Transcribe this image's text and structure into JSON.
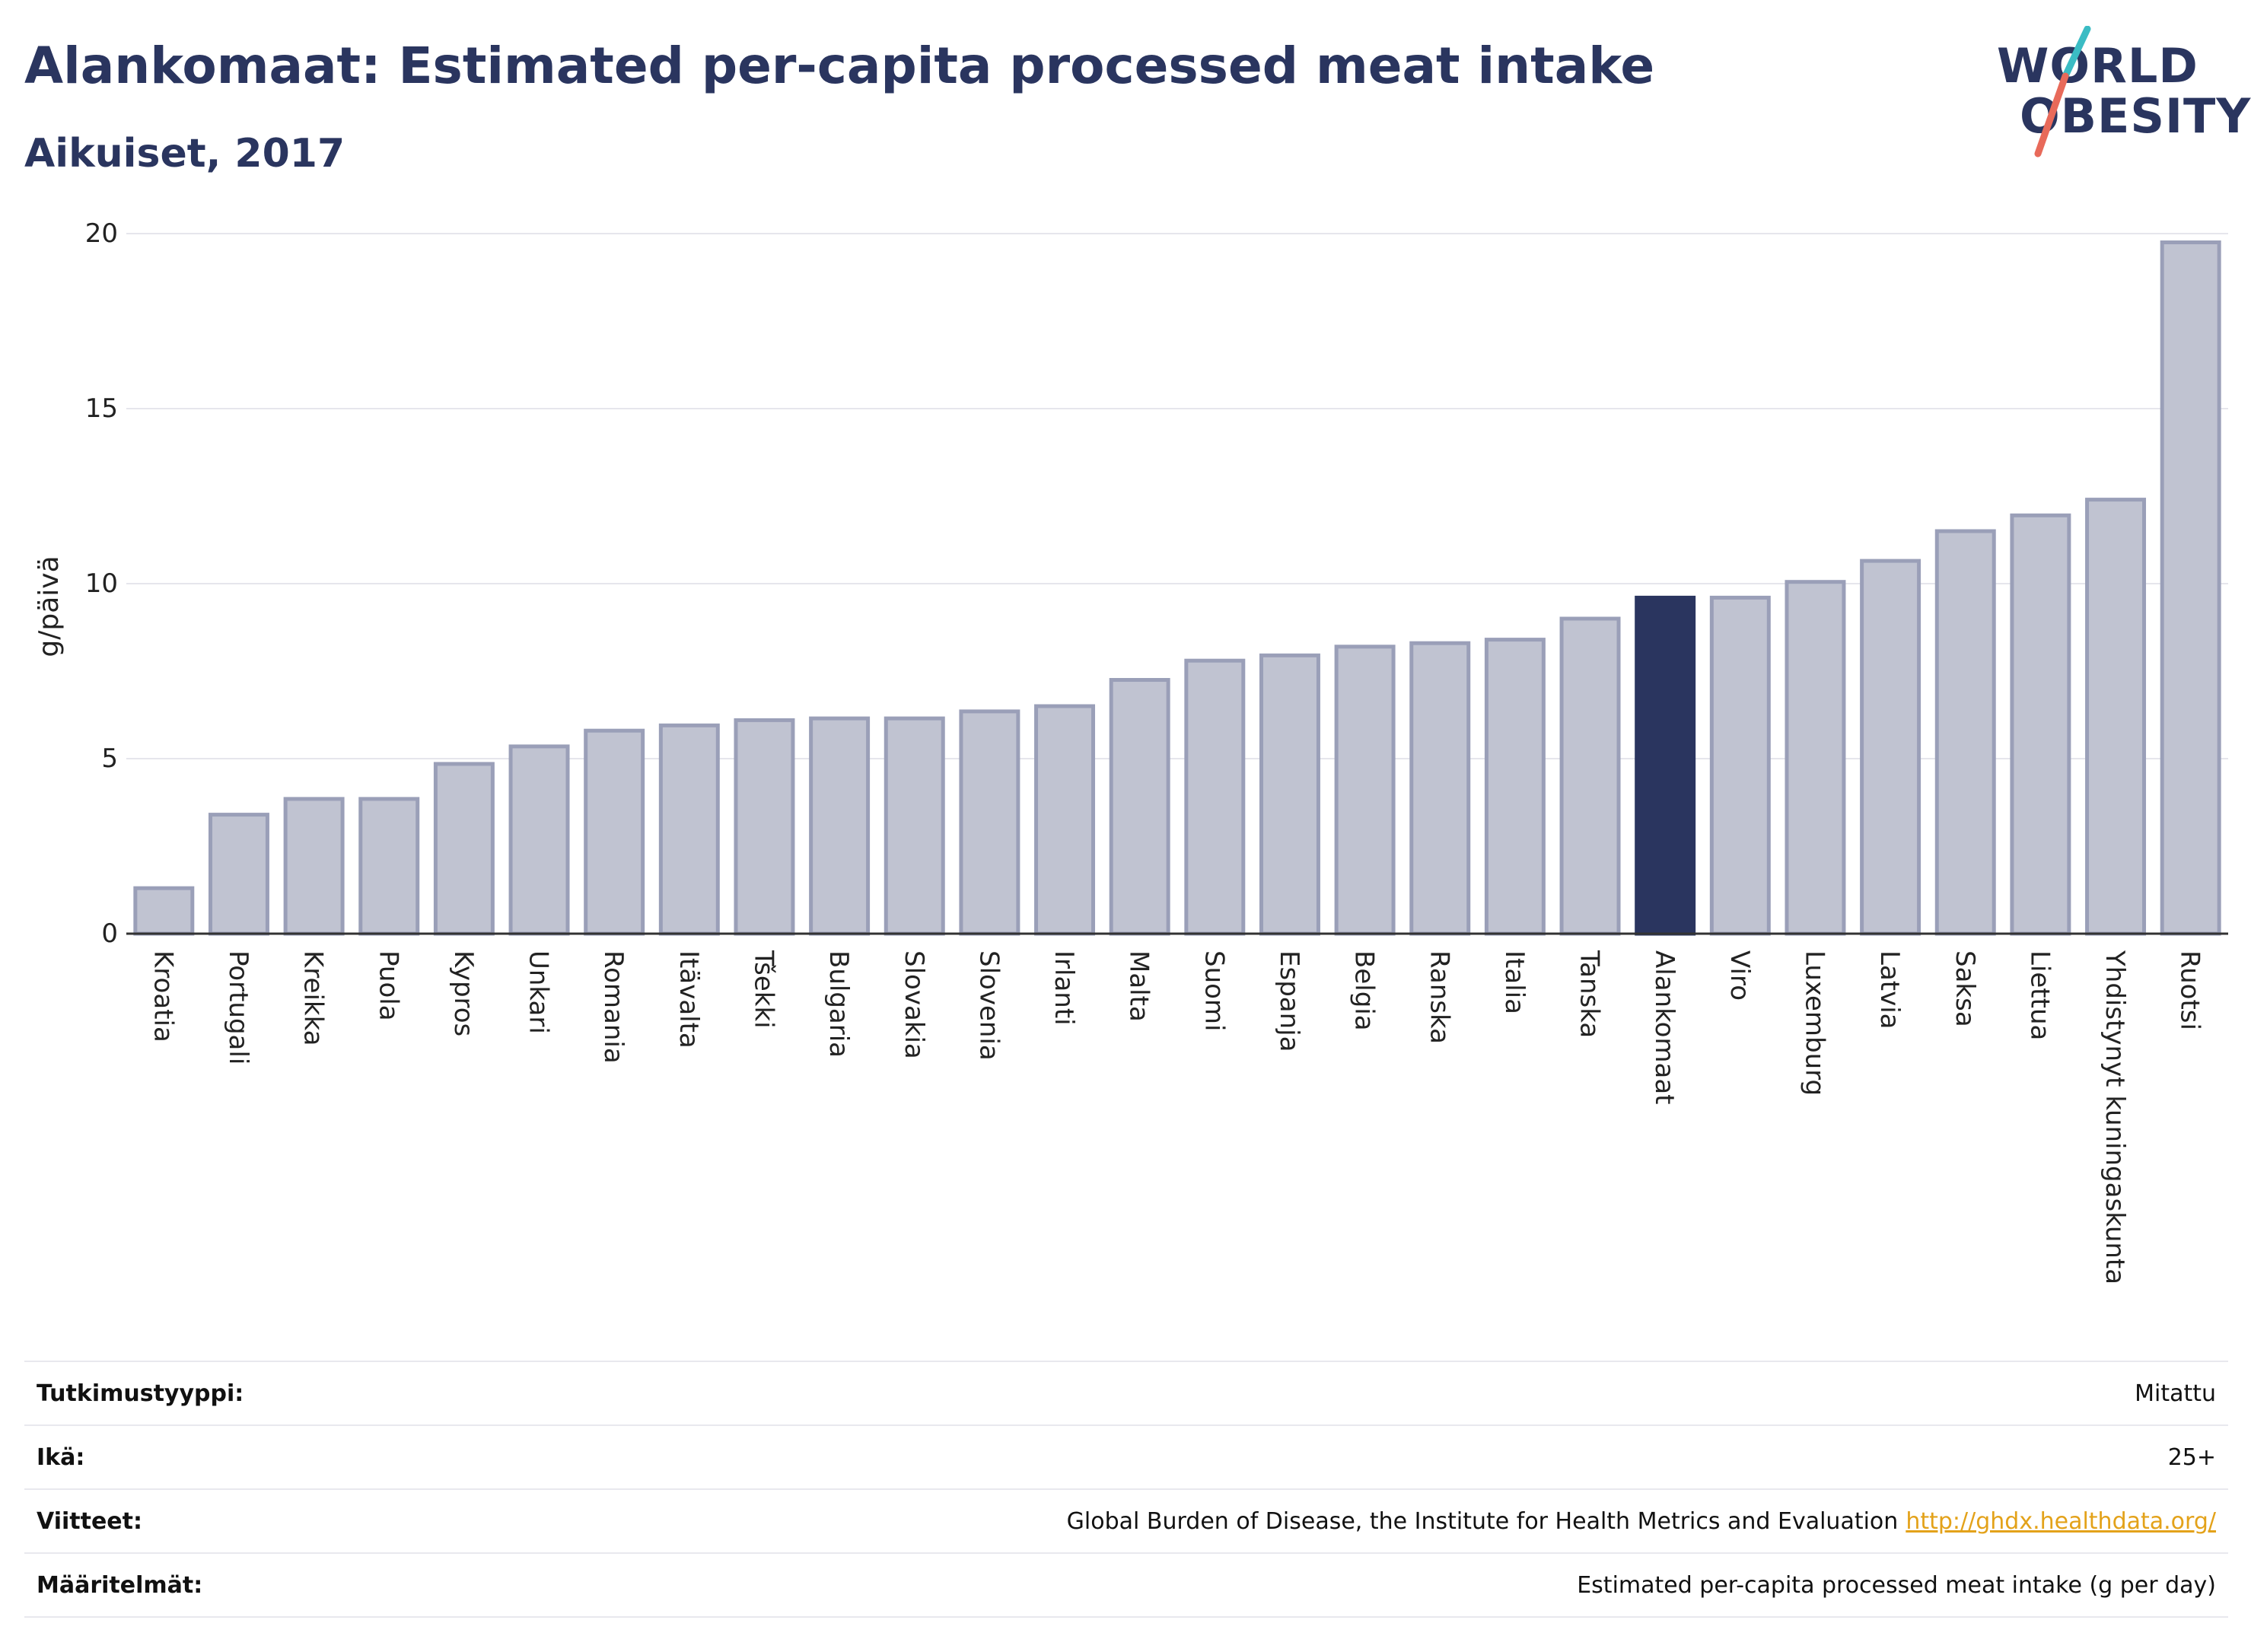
{
  "title": "Alankomaat: Estimated per-capita processed meat intake",
  "subtitle": "Aikuiset, 2017",
  "logo": {
    "line1": "WORLD",
    "line2": "OBESITY",
    "accent_top": "#3bbcc4",
    "accent_bottom": "#e86a5a"
  },
  "colors": {
    "bar": "#c0c3d1",
    "bar_border": "#9a9fb8",
    "highlight": "#2a355f",
    "grid": "#e6e6ec",
    "axis": "#333333"
  },
  "chart_data": {
    "type": "bar",
    "ylabel": "g/päivä",
    "ylim": [
      0,
      20
    ],
    "yticks": [
      0,
      5,
      10,
      15,
      20
    ],
    "highlight": "Alankomaat",
    "categories": [
      "Kroatia",
      "Portugali",
      "Kreikka",
      "Puola",
      "Kypros",
      "Unkari",
      "Romania",
      "Itävalta",
      "Tšekki",
      "Bulgaria",
      "Slovakia",
      "Slovenia",
      "Irlanti",
      "Malta",
      "Suomi",
      "Espanja",
      "Belgia",
      "Ranska",
      "Italia",
      "Tanska",
      "Alankomaat",
      "Viro",
      "Luxemburg",
      "Latvia",
      "Saksa",
      "Liettua",
      "Yhdistynyt kuningaskunta",
      "Ruotsi"
    ],
    "values": [
      1.3,
      3.4,
      3.85,
      3.85,
      4.85,
      5.35,
      5.8,
      5.95,
      6.1,
      6.15,
      6.15,
      6.35,
      6.5,
      7.25,
      7.8,
      7.95,
      8.2,
      8.3,
      8.4,
      9.0,
      9.6,
      9.6,
      10.05,
      10.65,
      11.5,
      11.95,
      12.4,
      19.75
    ]
  },
  "meta": [
    {
      "key": "Tutkimustyyppi:",
      "value": "Mitattu",
      "link": ""
    },
    {
      "key": "Ikä:",
      "value": "25+",
      "link": ""
    },
    {
      "key": "Viitteet:",
      "value": "Global Burden of Disease, the Institute for Health Metrics and Evaluation",
      "link": "http://ghdx.healthdata.org/"
    },
    {
      "key": "Määritelmät:",
      "value": "Estimated per-capita processed meat intake (g per day)",
      "link": ""
    }
  ]
}
